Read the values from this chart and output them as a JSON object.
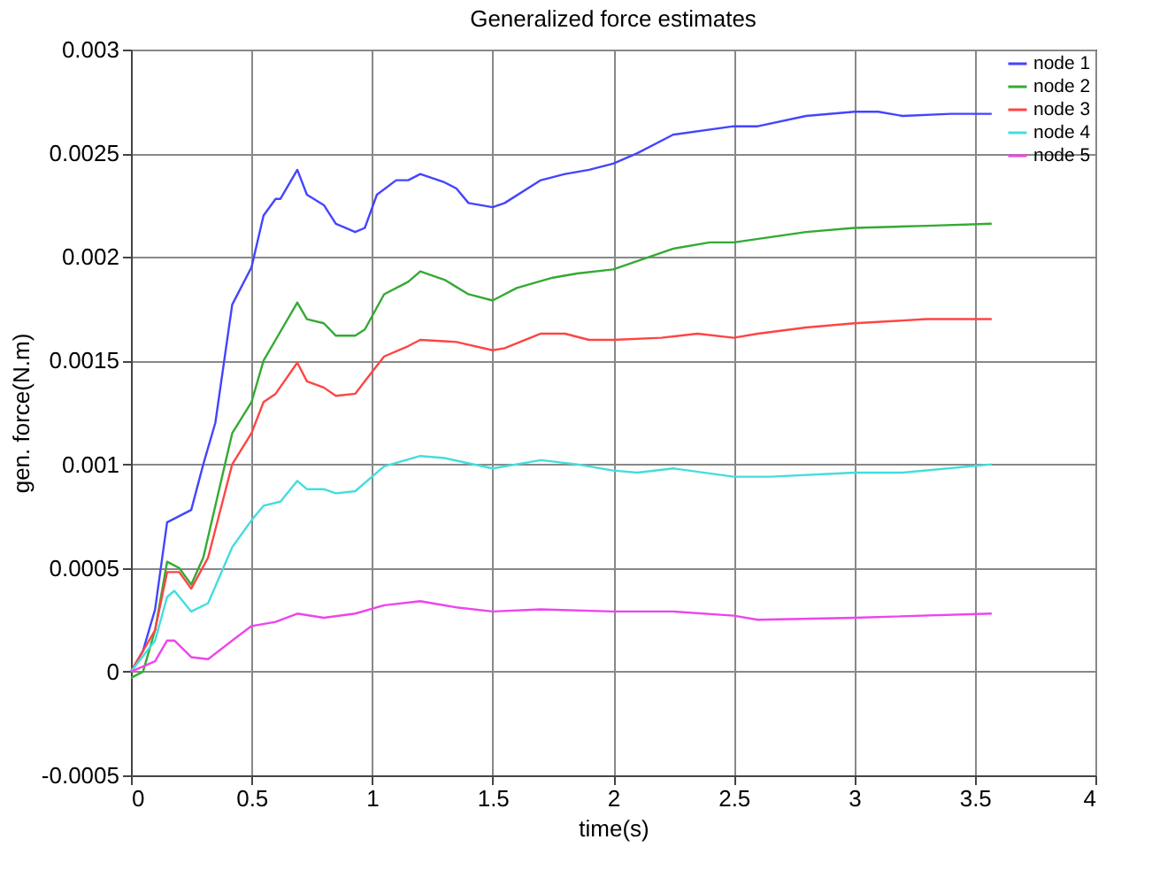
{
  "chart_data": {
    "type": "line",
    "title": "Generalized force estimates",
    "xlabel": "time(s)",
    "ylabel": "gen. force(N.m)",
    "xlim": [
      0,
      4
    ],
    "xticks": [
      0,
      0.5,
      1,
      1.5,
      2,
      2.5,
      3,
      3.5,
      4
    ],
    "ylim": [
      -0.0005,
      0.003
    ],
    "yticks": [
      -0.0005,
      0,
      0.0005,
      0.001,
      0.0015,
      0.002,
      0.0025,
      0.003
    ],
    "grid": true,
    "legend": "top right",
    "line_style": "solid",
    "marker": "none",
    "series": [
      {
        "name": "node 1",
        "color": "#4444ff",
        "x": [
          0,
          0.05,
          0.1,
          0.15,
          0.25,
          0.3,
          0.35,
          0.42,
          0.5,
          0.55,
          0.6,
          0.62,
          0.69,
          0.73,
          0.8,
          0.85,
          0.93,
          0.97,
          1.02,
          1.1,
          1.15,
          1.2,
          1.3,
          1.35,
          1.4,
          1.5,
          1.55,
          1.7,
          1.8,
          1.9,
          2.0,
          2.1,
          2.25,
          2.5,
          2.6,
          2.8,
          3.0,
          3.1,
          3.2,
          3.4,
          3.57
        ],
        "values": [
          0,
          0.0001,
          0.0003,
          0.00072,
          0.00078,
          0.001,
          0.0012,
          0.00177,
          0.00195,
          0.0022,
          0.00228,
          0.00228,
          0.00242,
          0.0023,
          0.00225,
          0.00216,
          0.00212,
          0.00214,
          0.0023,
          0.00237,
          0.00237,
          0.0024,
          0.00236,
          0.00233,
          0.00226,
          0.00224,
          0.00226,
          0.00237,
          0.0024,
          0.00242,
          0.00245,
          0.0025,
          0.00259,
          0.00263,
          0.00263,
          0.00268,
          0.0027,
          0.0027,
          0.00268,
          0.00269,
          0.00269
        ]
      },
      {
        "name": "node 2",
        "color": "#33aa33",
        "x": [
          0,
          0.05,
          0.1,
          0.15,
          0.2,
          0.25,
          0.3,
          0.35,
          0.42,
          0.5,
          0.55,
          0.6,
          0.69,
          0.73,
          0.8,
          0.85,
          0.93,
          0.97,
          1.05,
          1.15,
          1.2,
          1.3,
          1.4,
          1.5,
          1.6,
          1.75,
          1.85,
          2.0,
          2.25,
          2.4,
          2.5,
          2.8,
          3.0,
          3.3,
          3.57
        ],
        "values": [
          -3e-05,
          0,
          0.0002,
          0.00053,
          0.0005,
          0.00042,
          0.00055,
          0.0008,
          0.00115,
          0.0013,
          0.0015,
          0.0016,
          0.00178,
          0.0017,
          0.00168,
          0.00162,
          0.00162,
          0.00165,
          0.00182,
          0.00188,
          0.00193,
          0.00189,
          0.00182,
          0.00179,
          0.00185,
          0.0019,
          0.00192,
          0.00194,
          0.00204,
          0.00207,
          0.00207,
          0.00212,
          0.00214,
          0.00215,
          0.00216
        ]
      },
      {
        "name": "node 3",
        "color": "#ff4444",
        "x": [
          0,
          0.1,
          0.15,
          0.2,
          0.25,
          0.32,
          0.42,
          0.5,
          0.55,
          0.6,
          0.69,
          0.73,
          0.8,
          0.85,
          0.93,
          0.97,
          1.05,
          1.15,
          1.2,
          1.35,
          1.5,
          1.55,
          1.7,
          1.8,
          1.9,
          2.0,
          2.2,
          2.35,
          2.5,
          2.6,
          2.8,
          3.0,
          3.3,
          3.57
        ],
        "values": [
          0,
          0.0002,
          0.00048,
          0.00048,
          0.0004,
          0.00055,
          0.001,
          0.00115,
          0.0013,
          0.00134,
          0.00149,
          0.0014,
          0.00137,
          0.00133,
          0.00134,
          0.0014,
          0.00152,
          0.00157,
          0.0016,
          0.00159,
          0.00155,
          0.00156,
          0.00163,
          0.00163,
          0.0016,
          0.0016,
          0.00161,
          0.00163,
          0.00161,
          0.00163,
          0.00166,
          0.00168,
          0.0017,
          0.0017
        ]
      },
      {
        "name": "node 4",
        "color": "#44dddd",
        "x": [
          0,
          0.1,
          0.15,
          0.18,
          0.25,
          0.32,
          0.42,
          0.5,
          0.55,
          0.62,
          0.69,
          0.73,
          0.8,
          0.85,
          0.93,
          1.05,
          1.2,
          1.3,
          1.5,
          1.7,
          1.85,
          2.0,
          2.1,
          2.25,
          2.5,
          2.65,
          3.0,
          3.2,
          3.57
        ],
        "values": [
          0,
          0.00015,
          0.00036,
          0.00039,
          0.00029,
          0.00033,
          0.0006,
          0.00073,
          0.0008,
          0.00082,
          0.00092,
          0.00088,
          0.00088,
          0.00086,
          0.00087,
          0.00099,
          0.00104,
          0.00103,
          0.00098,
          0.00102,
          0.001,
          0.00097,
          0.00096,
          0.00098,
          0.00094,
          0.00094,
          0.00096,
          0.00096,
          0.001
        ]
      },
      {
        "name": "node 5",
        "color": "#ee44ee",
        "x": [
          0,
          0.1,
          0.15,
          0.18,
          0.25,
          0.32,
          0.42,
          0.5,
          0.6,
          0.69,
          0.8,
          0.93,
          1.05,
          1.2,
          1.35,
          1.5,
          1.7,
          2.0,
          2.25,
          2.5,
          2.6,
          3.0,
          3.57
        ],
        "values": [
          0,
          5e-05,
          0.00015,
          0.00015,
          7e-05,
          6e-05,
          0.00015,
          0.00022,
          0.00024,
          0.00028,
          0.00026,
          0.00028,
          0.00032,
          0.00034,
          0.00031,
          0.00029,
          0.0003,
          0.00029,
          0.00029,
          0.00027,
          0.00025,
          0.00026,
          0.00028
        ]
      }
    ]
  }
}
